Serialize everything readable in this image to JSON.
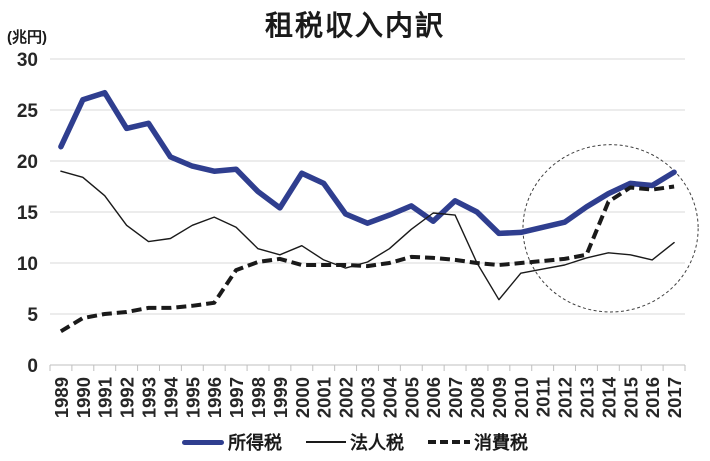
{
  "title": "租税収入内訳",
  "unit_label": "(兆円)",
  "colors": {
    "income_tax": "#2f3e8f",
    "corporate_tax": "#1a1a1a",
    "consumption_tax": "#1a1a1a",
    "gridline": "#d9d9d9",
    "axis": "#bfbfbf",
    "tick_label": "#262626",
    "annotation_ellipse": "#404040"
  },
  "chart_data": {
    "type": "line",
    "title": "租税収入内訳",
    "ylabel": "(兆円)",
    "xlabel": "",
    "ylim": [
      0,
      30
    ],
    "ytick_step": 5,
    "grid": "horizontal",
    "legend_position": "bottom",
    "categories": [
      "1989",
      "1990",
      "1991",
      "1992",
      "1993",
      "1994",
      "1995",
      "1996",
      "1997",
      "1998",
      "1999",
      "2000",
      "2001",
      "2002",
      "2003",
      "2004",
      "2005",
      "2006",
      "2007",
      "2008",
      "2009",
      "2010",
      "2011",
      "2012",
      "2013",
      "2014",
      "2015",
      "2016",
      "2017"
    ],
    "series": [
      {
        "name": "所得税",
        "style": "solid-thick",
        "color": "#2f3e8f",
        "values": [
          21.4,
          26.0,
          26.7,
          23.2,
          23.7,
          20.4,
          19.5,
          19.0,
          19.2,
          17.0,
          15.4,
          18.8,
          17.8,
          14.8,
          13.9,
          14.7,
          15.6,
          14.1,
          16.1,
          15.0,
          12.9,
          13.0,
          13.5,
          14.0,
          15.5,
          16.8,
          17.8,
          17.6,
          18.9
        ]
      },
      {
        "name": "法人税",
        "style": "solid-thin",
        "color": "#1a1a1a",
        "values": [
          19.0,
          18.4,
          16.6,
          13.7,
          12.1,
          12.4,
          13.7,
          14.5,
          13.5,
          11.4,
          10.8,
          11.7,
          10.3,
          9.5,
          10.1,
          11.4,
          13.3,
          14.9,
          14.7,
          10.0,
          6.4,
          9.0,
          9.4,
          9.8,
          10.5,
          11.0,
          10.8,
          10.3,
          12.0
        ]
      },
      {
        "name": "消費税",
        "style": "dashed",
        "color": "#1a1a1a",
        "values": [
          3.3,
          4.6,
          5.0,
          5.2,
          5.6,
          5.6,
          5.8,
          6.1,
          9.3,
          10.1,
          10.4,
          9.8,
          9.8,
          9.8,
          9.7,
          10.0,
          10.6,
          10.5,
          10.3,
          10.0,
          9.8,
          10.0,
          10.2,
          10.4,
          10.8,
          16.0,
          17.4,
          17.2,
          17.5
        ]
      }
    ],
    "annotation": {
      "type": "ellipse",
      "center_year": 2014.1,
      "center_value": 13.4,
      "radius_years": 4.0,
      "radius_value": 8.2
    }
  }
}
